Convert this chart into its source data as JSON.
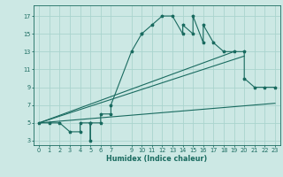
{
  "xlabel": "Humidex (Indice chaleur)",
  "bg_color": "#cce8e4",
  "grid_color": "#aad4ce",
  "line_color": "#1a6b60",
  "xlim": [
    -0.5,
    23.5
  ],
  "ylim": [
    2.5,
    18.2
  ],
  "xticks": [
    0,
    1,
    2,
    3,
    4,
    5,
    6,
    7,
    9,
    10,
    11,
    12,
    13,
    14,
    15,
    16,
    17,
    18,
    19,
    20,
    21,
    22,
    23
  ],
  "yticks": [
    3,
    5,
    7,
    9,
    11,
    13,
    15,
    17
  ],
  "line1_x": [
    0,
    1,
    2,
    3,
    4,
    4,
    5,
    5,
    5,
    6,
    6,
    7,
    7,
    9,
    10,
    10,
    11,
    12,
    13,
    14,
    14,
    15,
    15,
    16,
    16,
    17,
    18,
    19,
    20,
    20,
    21,
    22,
    23
  ],
  "line1_y": [
    5,
    5,
    5,
    4,
    4,
    5,
    5,
    3,
    5,
    5,
    6,
    6,
    7,
    13,
    15,
    15,
    16,
    17,
    17,
    15,
    16,
    15,
    17,
    14,
    16,
    14,
    13,
    13,
    13,
    10,
    9,
    9,
    9
  ],
  "line2_x": [
    0,
    23
  ],
  "line2_y": [
    5,
    7.2
  ],
  "line3_x": [
    0,
    19
  ],
  "line3_y": [
    5,
    13
  ],
  "line4_x": [
    0,
    20
  ],
  "line4_y": [
    5,
    12.5
  ],
  "marker_size": 2.5,
  "line_width": 0.8
}
